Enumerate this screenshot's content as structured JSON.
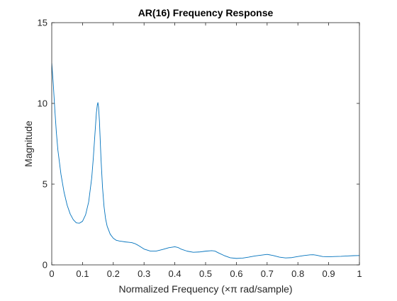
{
  "chart_data": {
    "type": "line",
    "title": "AR(16) Frequency Response",
    "xlabel": "Normalized Frequency (×π rad/sample)",
    "ylabel": "Magnitude",
    "xlim": [
      0,
      1
    ],
    "ylim": [
      0,
      15
    ],
    "xticks": [
      0,
      0.1,
      0.2,
      0.3,
      0.4,
      0.5,
      0.6,
      0.7,
      0.8,
      0.9,
      1
    ],
    "xtick_labels": [
      "0",
      "0.1",
      "0.2",
      "0.3",
      "0.4",
      "0.5",
      "0.6",
      "0.7",
      "0.8",
      "0.9",
      "1"
    ],
    "yticks": [
      0,
      5,
      10,
      15
    ],
    "ytick_labels": [
      "0",
      "5",
      "10",
      "15"
    ],
    "grid": false,
    "box": true,
    "series": [
      {
        "color": "#0072BD",
        "x": [
          0,
          0.005,
          0.01,
          0.015,
          0.02,
          0.03,
          0.04,
          0.05,
          0.06,
          0.07,
          0.08,
          0.09,
          0.1,
          0.11,
          0.12,
          0.13,
          0.135,
          0.14,
          0.145,
          0.148,
          0.15,
          0.152,
          0.155,
          0.16,
          0.165,
          0.17,
          0.175,
          0.18,
          0.19,
          0.2,
          0.21,
          0.22,
          0.23,
          0.24,
          0.25,
          0.26,
          0.27,
          0.28,
          0.29,
          0.3,
          0.32,
          0.34,
          0.36,
          0.38,
          0.4,
          0.41,
          0.42,
          0.44,
          0.46,
          0.48,
          0.5,
          0.52,
          0.53,
          0.54,
          0.56,
          0.58,
          0.6,
          0.62,
          0.64,
          0.66,
          0.68,
          0.7,
          0.72,
          0.74,
          0.76,
          0.78,
          0.8,
          0.82,
          0.84,
          0.85,
          0.86,
          0.88,
          0.9,
          0.92,
          0.94,
          0.96,
          0.98,
          1.0
        ],
        "y": [
          12.5,
          11.2,
          9.6,
          8.2,
          7.1,
          5.6,
          4.5,
          3.7,
          3.15,
          2.8,
          2.6,
          2.58,
          2.7,
          3.1,
          3.9,
          5.4,
          6.6,
          8.0,
          9.4,
          9.9,
          10.05,
          9.8,
          8.9,
          6.6,
          4.8,
          3.6,
          2.85,
          2.4,
          1.9,
          1.65,
          1.52,
          1.48,
          1.45,
          1.42,
          1.4,
          1.38,
          1.32,
          1.22,
          1.1,
          0.98,
          0.86,
          0.86,
          0.95,
          1.06,
          1.12,
          1.08,
          0.98,
          0.85,
          0.78,
          0.8,
          0.85,
          0.88,
          0.86,
          0.76,
          0.58,
          0.44,
          0.4,
          0.42,
          0.48,
          0.55,
          0.6,
          0.65,
          0.58,
          0.48,
          0.43,
          0.45,
          0.52,
          0.58,
          0.62,
          0.63,
          0.6,
          0.52,
          0.5,
          0.52,
          0.53,
          0.55,
          0.57,
          0.58
        ]
      }
    ]
  }
}
